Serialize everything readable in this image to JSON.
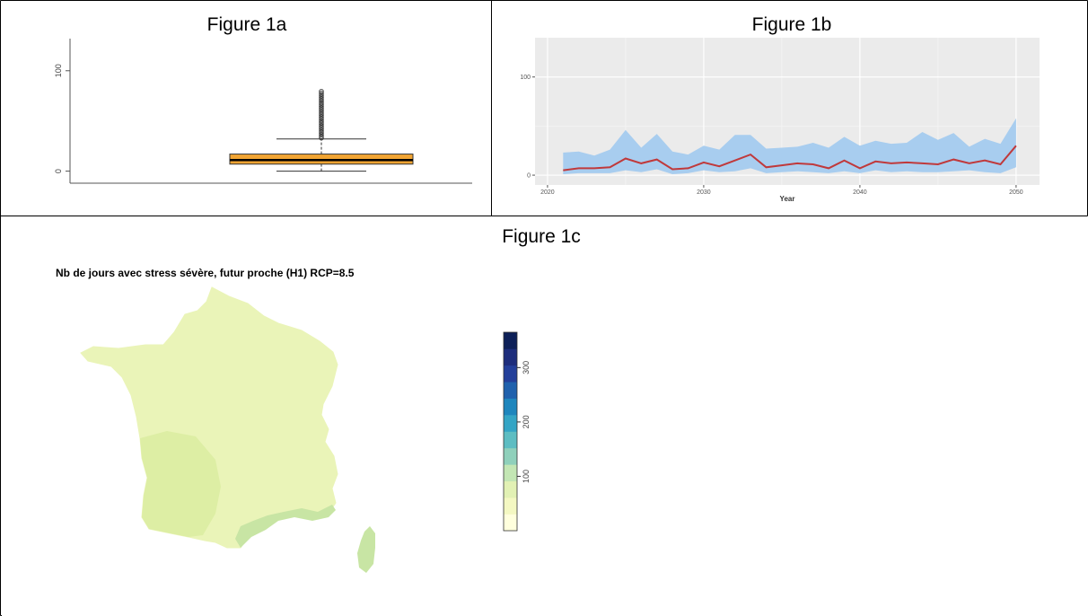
{
  "captions": {
    "a": "Figure 1a",
    "b": "Figure 1b",
    "c": "Figure 1c"
  },
  "chart_data": [
    {
      "type": "box",
      "yticks": [
        0,
        100
      ],
      "ylim": [
        -12,
        132
      ],
      "box": {
        "min": 0,
        "q1": 7,
        "median": 11,
        "q3": 17,
        "whisker_high": 32,
        "outlier_max": 80
      },
      "colors": {
        "box": "#f2a533",
        "median": "#000000"
      }
    },
    {
      "type": "area",
      "xlabel": "Year",
      "xticks": [
        2020,
        2030,
        2040,
        2050
      ],
      "yticks": [
        0,
        100
      ],
      "xlim": [
        2019.2,
        2051.5
      ],
      "ylim": [
        -10,
        140
      ],
      "x": [
        2021,
        2022,
        2023,
        2024,
        2025,
        2026,
        2027,
        2028,
        2029,
        2030,
        2031,
        2032,
        2033,
        2034,
        2035,
        2036,
        2037,
        2038,
        2039,
        2040,
        2041,
        2042,
        2043,
        2044,
        2045,
        2046,
        2047,
        2048,
        2049,
        2050
      ],
      "series": [
        {
          "role": "band_low",
          "values": [
            1,
            2,
            2,
            2,
            5,
            3,
            6,
            1,
            2,
            5,
            3,
            4,
            7,
            2,
            3,
            4,
            3,
            2,
            4,
            2,
            5,
            3,
            4,
            3,
            3,
            4,
            5,
            3,
            2,
            8
          ]
        },
        {
          "role": "band_high",
          "values": [
            23,
            24,
            20,
            26,
            46,
            28,
            42,
            24,
            21,
            30,
            26,
            41,
            41,
            27,
            28,
            29,
            33,
            28,
            39,
            30,
            35,
            32,
            33,
            44,
            36,
            43,
            29,
            37,
            32,
            58
          ]
        },
        {
          "role": "median",
          "values": [
            5,
            7,
            7,
            8,
            17,
            12,
            16,
            6,
            7,
            13,
            9,
            15,
            21,
            8,
            10,
            12,
            11,
            7,
            15,
            7,
            14,
            12,
            13,
            12,
            11,
            16,
            12,
            15,
            11,
            30
          ]
        }
      ],
      "colors": {
        "band": "#a8cdef",
        "line": "#c0393b",
        "panel": "#ebebeb",
        "grid": "#ffffff"
      }
    },
    {
      "type": "heatmap",
      "title": "Nb de jours avec stress sévère, futur proche (H1) RCP=8.5",
      "scale_ticks": [
        100,
        200,
        300
      ],
      "scale_range": [
        0,
        365
      ],
      "scale_colors": [
        "#ffffdd",
        "#f4f8c2",
        "#e2f1b4",
        "#c3e6b4",
        "#8fd0bb",
        "#5dbdc2",
        "#34a5c5",
        "#1e86bd",
        "#1f61ad",
        "#233f9a",
        "#1d2d7c",
        "#0d2058"
      ],
      "region_colors": {
        "base": "#eaf4b8",
        "southwest": "#ddeea4",
        "mediterranean": "#c8e5a4"
      }
    }
  ]
}
